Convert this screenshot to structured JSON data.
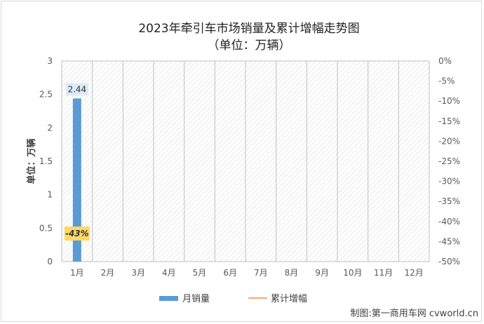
{
  "chart_data": {
    "type": "bar",
    "title": "2023年牵引车市场销量及累计增幅走势图",
    "subtitle": "（单位：万辆）",
    "ylabel": "单位：万辆",
    "categories": [
      "1月",
      "2月",
      "3月",
      "4月",
      "5月",
      "6月",
      "7月",
      "8月",
      "9月",
      "10月",
      "11月",
      "12月"
    ],
    "series": [
      {
        "name": "月销量",
        "type": "bar",
        "axis": "left",
        "color": "#5b9bd5",
        "values": [
          2.44,
          null,
          null,
          null,
          null,
          null,
          null,
          null,
          null,
          null,
          null,
          null
        ],
        "labels": [
          "2.44"
        ]
      },
      {
        "name": "累计增幅",
        "type": "line",
        "axis": "right",
        "color": "#f4b183",
        "values": [
          -43,
          null,
          null,
          null,
          null,
          null,
          null,
          null,
          null,
          null,
          null,
          null
        ],
        "labels": [
          "-43%"
        ]
      }
    ],
    "ylim": [
      0,
      3
    ],
    "yticks": [
      "0",
      "0.5",
      "1",
      "1.5",
      "2",
      "2.5",
      "3"
    ],
    "y2lim": [
      -50,
      0
    ],
    "y2ticks": [
      "0%",
      "-5%",
      "-10%",
      "-15%",
      "-20%",
      "-25%",
      "-30%",
      "-35%",
      "-40%",
      "-45%",
      "-50%"
    ],
    "label_bg": {
      "bar": "#ddebf7",
      "line": "#ffd966"
    },
    "grid": true,
    "legend": "bottom"
  },
  "credit": "制图:第一商用车网 cvworld.cn"
}
